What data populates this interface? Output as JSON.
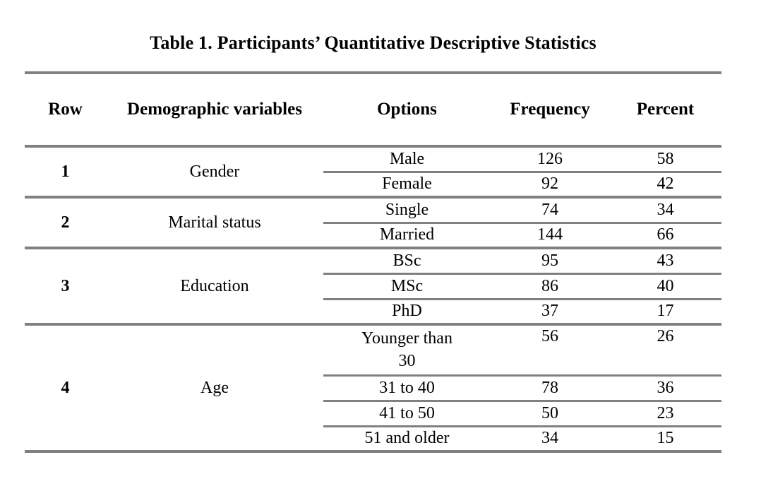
{
  "page": {
    "background": "#ffffff",
    "text_color": "#000000",
    "rule_color": "#808080"
  },
  "table": {
    "title": "Table 1. Participants’ Quantitative Descriptive Statistics",
    "columns": [
      "Row",
      "Demographic variables",
      "Options",
      "Frequency",
      "Percent"
    ],
    "sections": [
      {
        "row": "1",
        "variable": "Gender",
        "options": [
          {
            "option": "Male",
            "frequency": "126",
            "percent": "58"
          },
          {
            "option": "Female",
            "frequency": "92",
            "percent": "42"
          }
        ]
      },
      {
        "row": "2",
        "variable": "Marital status",
        "options": [
          {
            "option": "Single",
            "frequency": "74",
            "percent": "34"
          },
          {
            "option": "Married",
            "frequency": "144",
            "percent": "66"
          }
        ]
      },
      {
        "row": "3",
        "variable": "Education",
        "options": [
          {
            "option": "BSc",
            "frequency": "95",
            "percent": "43"
          },
          {
            "option": "MSc",
            "frequency": "86",
            "percent": "40"
          },
          {
            "option": "PhD",
            "frequency": "37",
            "percent": "17"
          }
        ]
      },
      {
        "row": "4",
        "variable": "Age",
        "options": [
          {
            "option": "Younger than 30",
            "frequency": "56",
            "percent": "26"
          },
          {
            "option": "31 to 40",
            "frequency": "78",
            "percent": "36"
          },
          {
            "option": "41 to 50",
            "frequency": "50",
            "percent": "23"
          },
          {
            "option": "51 and older",
            "frequency": "34",
            "percent": "15"
          }
        ]
      }
    ]
  }
}
